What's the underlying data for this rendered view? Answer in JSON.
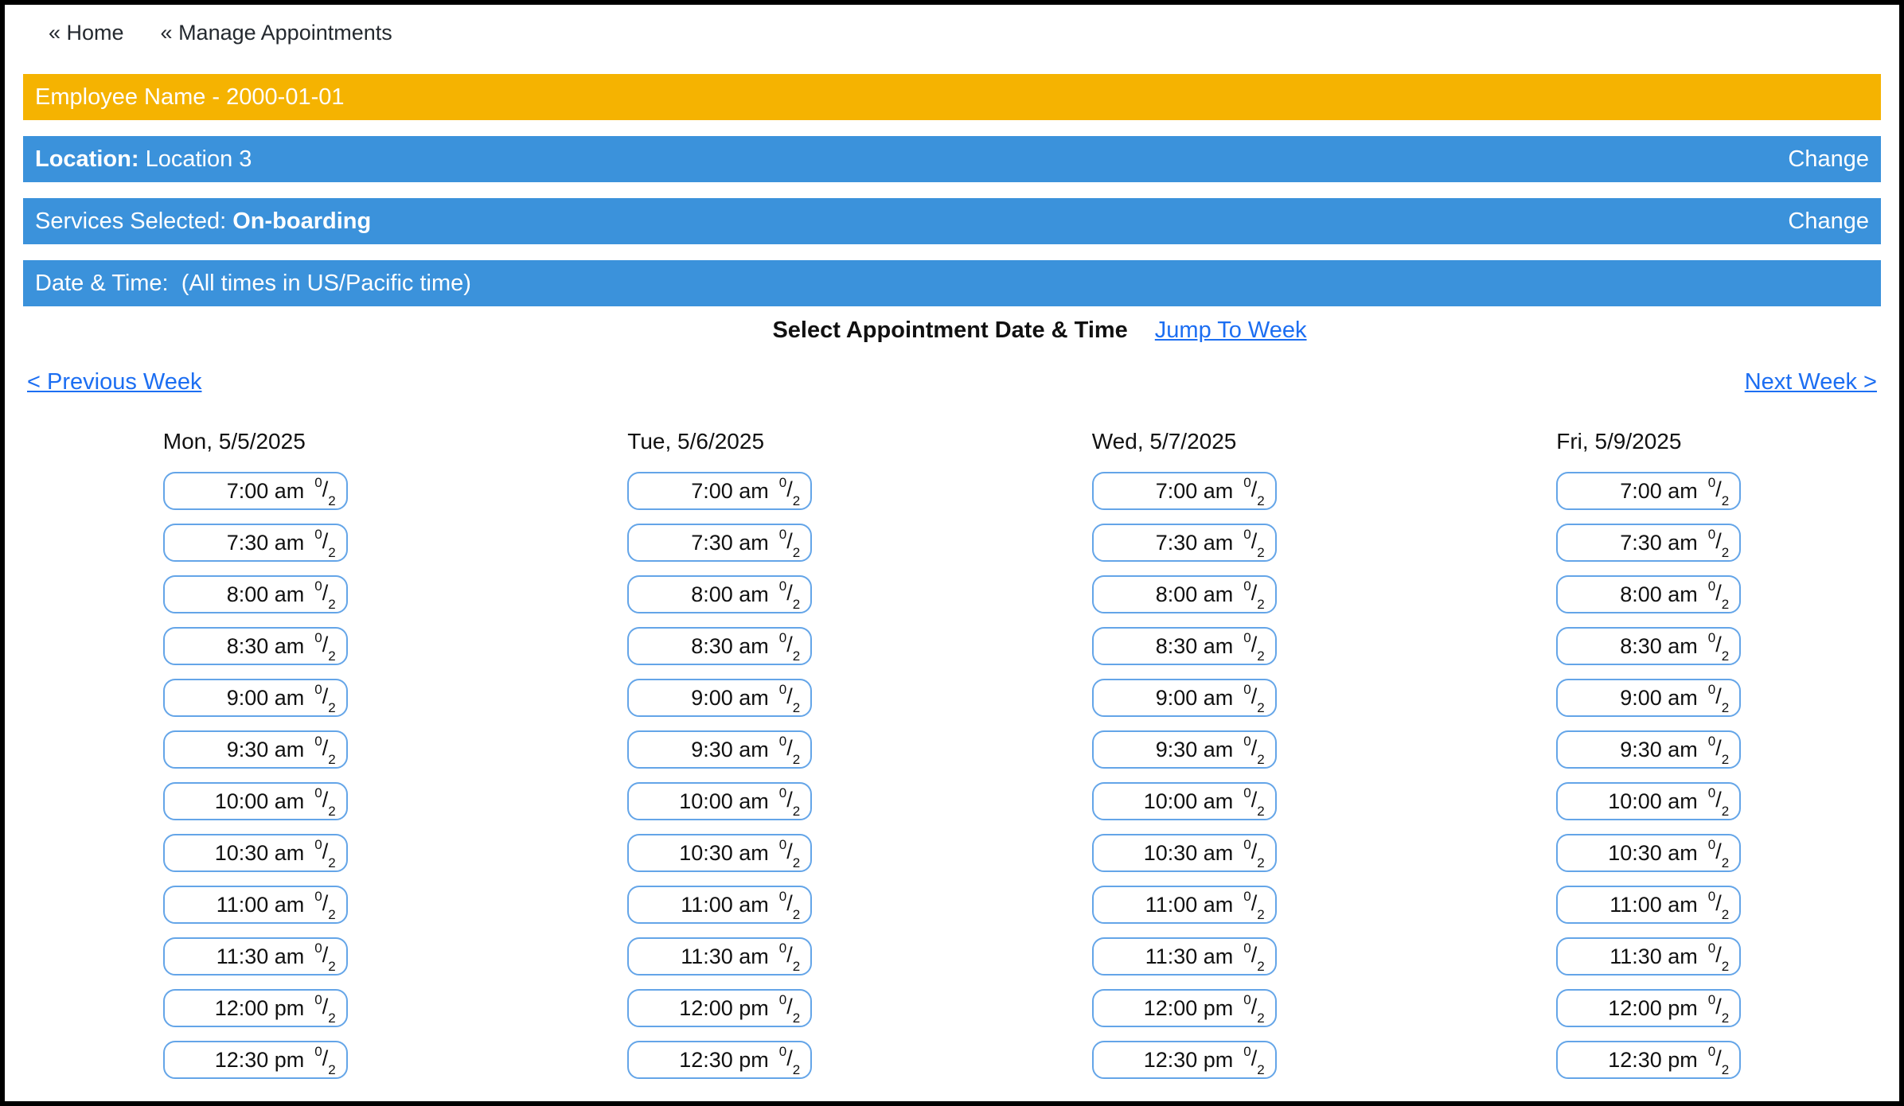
{
  "nav": {
    "home_label": "« Home",
    "manage_label": "« Manage Appointments"
  },
  "banners": {
    "employee_title": "Employee Name - 2000-01-01",
    "location_label": "Location:",
    "location_value": " Location 3",
    "services_label": "Services Selected: ",
    "services_value": "On-boarding",
    "datetime_label": "Date & Time:  (All times in US/Pacific time)",
    "change_label": "Change"
  },
  "scheduler": {
    "title": "Select Appointment Date & Time",
    "jump_to_week_label": "Jump To Week",
    "previous_week_label": "< Previous Week",
    "next_week_label": "Next Week >",
    "days": [
      {
        "label": "Mon, 5/5/2025",
        "slots": [
          {
            "time": "7:00 am",
            "booked": "0",
            "capacity": "2"
          },
          {
            "time": "7:30 am",
            "booked": "0",
            "capacity": "2"
          },
          {
            "time": "8:00 am",
            "booked": "0",
            "capacity": "2"
          },
          {
            "time": "8:30 am",
            "booked": "0",
            "capacity": "2"
          },
          {
            "time": "9:00 am",
            "booked": "0",
            "capacity": "2"
          },
          {
            "time": "9:30 am",
            "booked": "0",
            "capacity": "2"
          },
          {
            "time": "10:00 am",
            "booked": "0",
            "capacity": "2"
          },
          {
            "time": "10:30 am",
            "booked": "0",
            "capacity": "2"
          },
          {
            "time": "11:00 am",
            "booked": "0",
            "capacity": "2"
          },
          {
            "time": "11:30 am",
            "booked": "0",
            "capacity": "2"
          },
          {
            "time": "12:00 pm",
            "booked": "0",
            "capacity": "2"
          },
          {
            "time": "12:30 pm",
            "booked": "0",
            "capacity": "2"
          }
        ]
      },
      {
        "label": "Tue, 5/6/2025",
        "slots": [
          {
            "time": "7:00 am",
            "booked": "0",
            "capacity": "2"
          },
          {
            "time": "7:30 am",
            "booked": "0",
            "capacity": "2"
          },
          {
            "time": "8:00 am",
            "booked": "0",
            "capacity": "2"
          },
          {
            "time": "8:30 am",
            "booked": "0",
            "capacity": "2"
          },
          {
            "time": "9:00 am",
            "booked": "0",
            "capacity": "2"
          },
          {
            "time": "9:30 am",
            "booked": "0",
            "capacity": "2"
          },
          {
            "time": "10:00 am",
            "booked": "0",
            "capacity": "2"
          },
          {
            "time": "10:30 am",
            "booked": "0",
            "capacity": "2"
          },
          {
            "time": "11:00 am",
            "booked": "0",
            "capacity": "2"
          },
          {
            "time": "11:30 am",
            "booked": "0",
            "capacity": "2"
          },
          {
            "time": "12:00 pm",
            "booked": "0",
            "capacity": "2"
          },
          {
            "time": "12:30 pm",
            "booked": "0",
            "capacity": "2"
          }
        ]
      },
      {
        "label": "Wed, 5/7/2025",
        "slots": [
          {
            "time": "7:00 am",
            "booked": "0",
            "capacity": "2"
          },
          {
            "time": "7:30 am",
            "booked": "0",
            "capacity": "2"
          },
          {
            "time": "8:00 am",
            "booked": "0",
            "capacity": "2"
          },
          {
            "time": "8:30 am",
            "booked": "0",
            "capacity": "2"
          },
          {
            "time": "9:00 am",
            "booked": "0",
            "capacity": "2"
          },
          {
            "time": "9:30 am",
            "booked": "0",
            "capacity": "2"
          },
          {
            "time": "10:00 am",
            "booked": "0",
            "capacity": "2"
          },
          {
            "time": "10:30 am",
            "booked": "0",
            "capacity": "2"
          },
          {
            "time": "11:00 am",
            "booked": "0",
            "capacity": "2"
          },
          {
            "time": "11:30 am",
            "booked": "0",
            "capacity": "2"
          },
          {
            "time": "12:00 pm",
            "booked": "0",
            "capacity": "2"
          },
          {
            "time": "12:30 pm",
            "booked": "0",
            "capacity": "2"
          }
        ]
      },
      {
        "label": "Fri, 5/9/2025",
        "slots": [
          {
            "time": "7:00 am",
            "booked": "0",
            "capacity": "2"
          },
          {
            "time": "7:30 am",
            "booked": "0",
            "capacity": "2"
          },
          {
            "time": "8:00 am",
            "booked": "0",
            "capacity": "2"
          },
          {
            "time": "8:30 am",
            "booked": "0",
            "capacity": "2"
          },
          {
            "time": "9:00 am",
            "booked": "0",
            "capacity": "2"
          },
          {
            "time": "9:30 am",
            "booked": "0",
            "capacity": "2"
          },
          {
            "time": "10:00 am",
            "booked": "0",
            "capacity": "2"
          },
          {
            "time": "10:30 am",
            "booked": "0",
            "capacity": "2"
          },
          {
            "time": "11:00 am",
            "booked": "0",
            "capacity": "2"
          },
          {
            "time": "11:30 am",
            "booked": "0",
            "capacity": "2"
          },
          {
            "time": "12:00 pm",
            "booked": "0",
            "capacity": "2"
          },
          {
            "time": "12:30 pm",
            "booked": "0",
            "capacity": "2"
          }
        ]
      }
    ]
  },
  "colors": {
    "banner_orange": "#F5B301",
    "banner_blue": "#3B92DB",
    "link_blue": "#1C6EF2",
    "slot_border_blue": "#64A5E8",
    "frame_black": "#000000"
  }
}
